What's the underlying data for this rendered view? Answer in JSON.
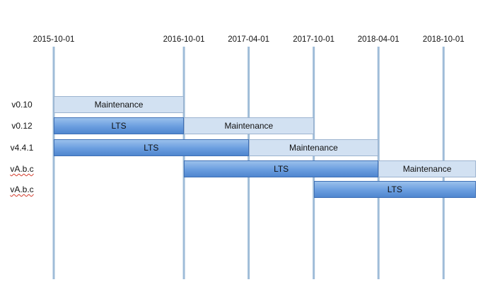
{
  "chart_data": {
    "type": "timeline",
    "time_markers": [
      "2015-10-01",
      "2016-10-01",
      "2017-04-01",
      "2017-10-01",
      "2018-04-01",
      "2018-10-01"
    ],
    "x_range": [
      "2015-10-01",
      "2018-12-31"
    ],
    "rows": [
      {
        "label": "v0.10",
        "spellcheck": false,
        "phases": [
          {
            "phase": "Maintenance",
            "start": "2015-10-01",
            "end": "2016-10-01"
          }
        ]
      },
      {
        "label": "v0.12",
        "spellcheck": false,
        "phases": [
          {
            "phase": "LTS",
            "start": "2015-10-01",
            "end": "2016-10-01"
          },
          {
            "phase": "Maintenance",
            "start": "2016-10-01",
            "end": "2017-10-01"
          }
        ]
      },
      {
        "label": "v4.4.1",
        "spellcheck": false,
        "phases": [
          {
            "phase": "LTS",
            "start": "2015-10-01",
            "end": "2017-04-01"
          },
          {
            "phase": "Maintenance",
            "start": "2017-04-01",
            "end": "2018-04-01"
          }
        ]
      },
      {
        "label": "vA.b.c",
        "spellcheck": true,
        "phases": [
          {
            "phase": "LTS",
            "start": "2016-10-01",
            "end": "2018-04-01"
          },
          {
            "phase": "Maintenance",
            "start": "2018-04-01",
            "end": "2018-12-31"
          }
        ]
      },
      {
        "label": "vA.b.c",
        "spellcheck": true,
        "phases": [
          {
            "phase": "LTS",
            "start": "2017-10-01",
            "end": "2018-12-31"
          }
        ]
      }
    ],
    "colors": {
      "gridline": "#9fbcd8",
      "lts": "#6a9ddf",
      "maintenance": "#d2e1f2",
      "spellcheck_underline": "#d23a2a"
    }
  }
}
